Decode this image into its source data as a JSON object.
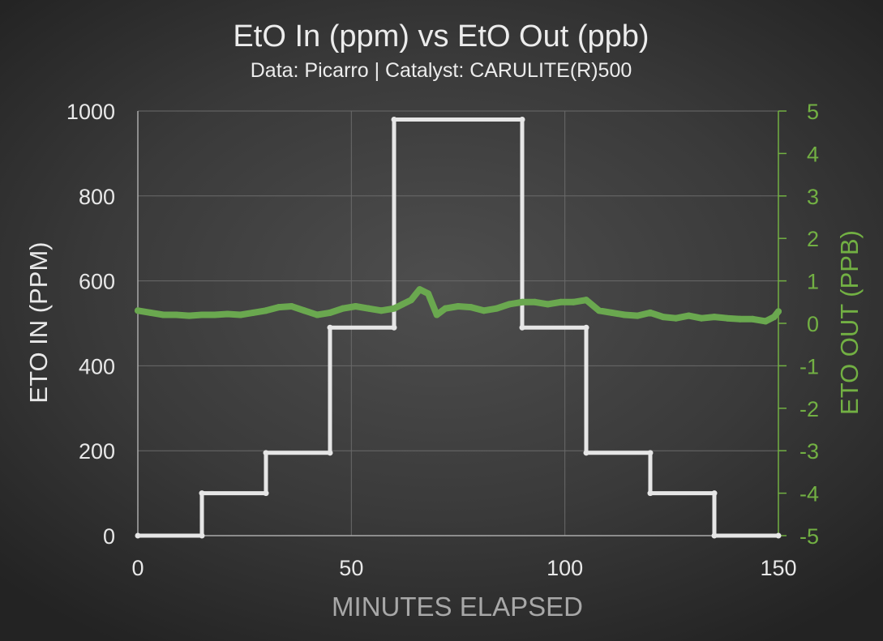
{
  "chart_data": {
    "type": "line",
    "title": "EtO In (ppm) vs EtO Out (ppb)",
    "subtitle": "Data: Picarro | Catalyst: CARULITE(R)500",
    "xlabel": "MINUTES ELAPSED",
    "ylabel_left": "ETO IN (PPM)",
    "ylabel_right": "ETO OUT (PPB)",
    "xlim": [
      0,
      150
    ],
    "ylim_left": [
      0,
      1000
    ],
    "ylim_right": [
      -5,
      5
    ],
    "x_ticks": [
      0,
      50,
      100,
      150
    ],
    "y_ticks_left": [
      0,
      200,
      400,
      600,
      800,
      1000
    ],
    "y_ticks_right": [
      -5,
      -4,
      -3,
      -2,
      -1,
      0,
      1,
      2,
      3,
      4,
      5
    ],
    "grid": true,
    "colors": {
      "eto_in": "#e6e6e6",
      "eto_out": "#6aa84f",
      "right_axis": "#72b043",
      "text": "#e8e8e8",
      "axis": "#aaaaaa"
    },
    "series": [
      {
        "axis": "left",
        "x": [
          0,
          15,
          15,
          30,
          30,
          45,
          45,
          60,
          60,
          90,
          90,
          105,
          105,
          120,
          120,
          135,
          135,
          150
        ],
        "y": [
          0,
          0,
          100,
          100,
          195,
          195,
          490,
          490,
          980,
          980,
          490,
          490,
          195,
          195,
          100,
          100,
          0,
          0
        ]
      },
      {
        "axis": "right",
        "x": [
          0,
          3,
          6,
          9,
          12,
          15,
          18,
          21,
          24,
          27,
          30,
          33,
          36,
          39,
          42,
          45,
          48,
          51,
          54,
          57,
          60,
          62,
          64,
          66,
          68,
          70,
          72,
          75,
          78,
          81,
          84,
          87,
          90,
          93,
          96,
          99,
          102,
          105,
          108,
          111,
          114,
          117,
          120,
          123,
          126,
          129,
          132,
          135,
          138,
          141,
          144,
          147,
          149,
          150
        ],
        "y": [
          0.3,
          0.25,
          0.2,
          0.2,
          0.18,
          0.2,
          0.2,
          0.22,
          0.2,
          0.25,
          0.3,
          0.38,
          0.4,
          0.3,
          0.2,
          0.25,
          0.35,
          0.4,
          0.35,
          0.3,
          0.35,
          0.45,
          0.55,
          0.8,
          0.7,
          0.2,
          0.35,
          0.4,
          0.38,
          0.3,
          0.35,
          0.45,
          0.5,
          0.5,
          0.45,
          0.5,
          0.5,
          0.55,
          0.3,
          0.25,
          0.2,
          0.18,
          0.25,
          0.15,
          0.12,
          0.18,
          0.12,
          0.15,
          0.12,
          0.1,
          0.1,
          0.05,
          0.15,
          0.28
        ]
      }
    ]
  }
}
